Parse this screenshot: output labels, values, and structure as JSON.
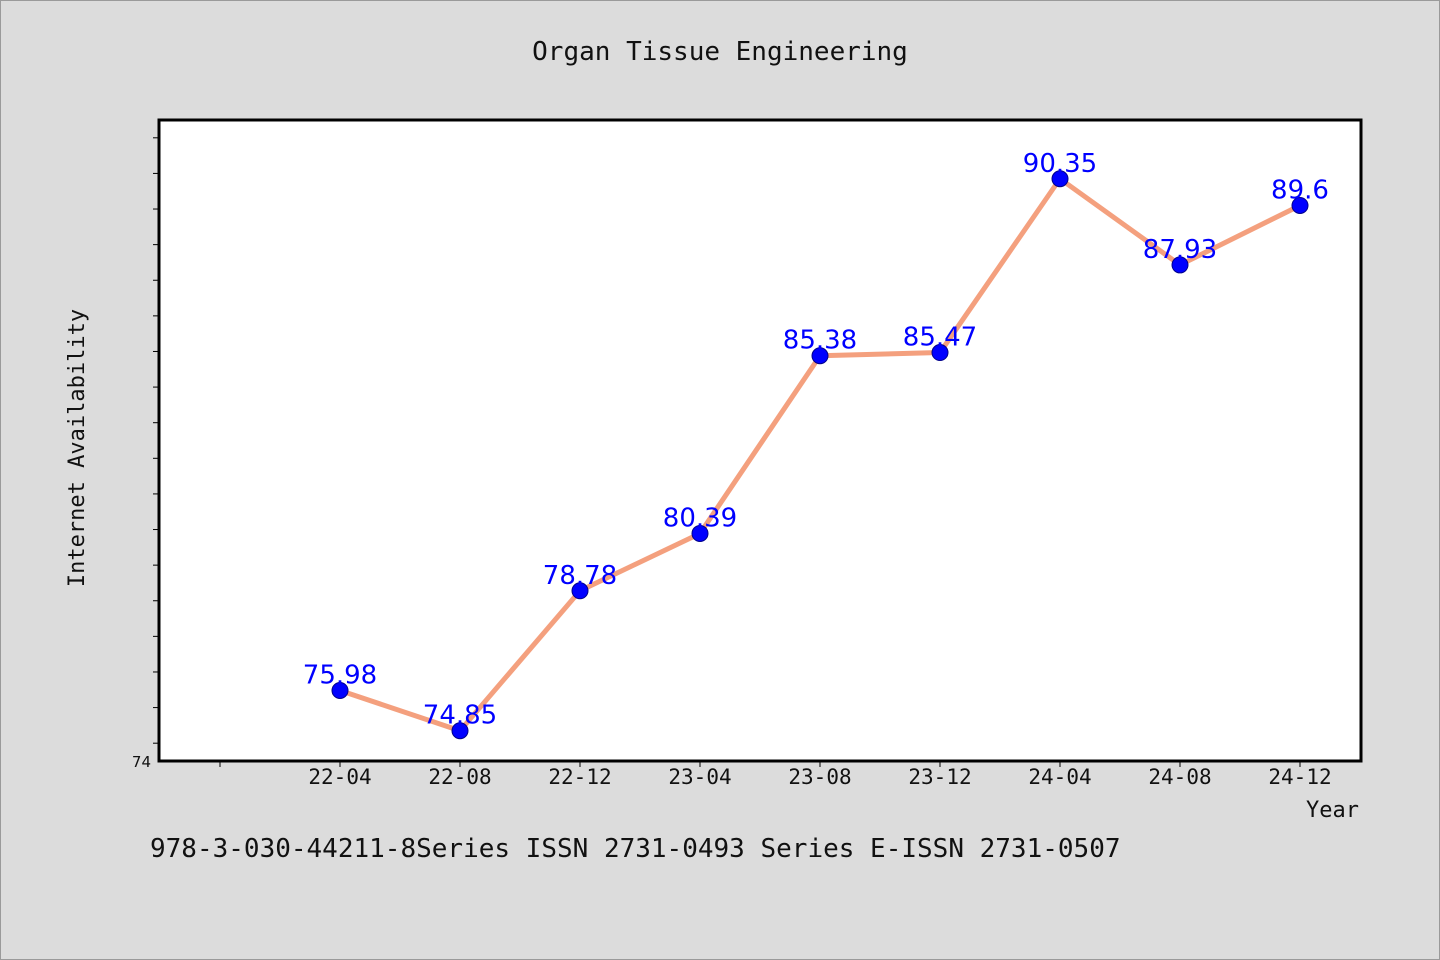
{
  "chart_data": {
    "type": "line",
    "title": "Organ Tissue Engineering",
    "xlabel": "Year",
    "ylabel": "Internet Availability",
    "categories": [
      "22-04",
      "22-08",
      "22-12",
      "23-04",
      "23-08",
      "23-12",
      "24-04",
      "24-08",
      "24-12"
    ],
    "series": [
      {
        "values": [
          75.98,
          74.85,
          78.78,
          80.39,
          85.38,
          85.47,
          90.35,
          87.93,
          89.6
        ]
      }
    ],
    "data_labels": [
      "75.98",
      "74.85",
      "78.78",
      "80.39",
      "85.38",
      "85.47",
      "90.35",
      "87.93",
      "89.6"
    ],
    "ylim": [
      74,
      92
    ],
    "y_tick_labels": [
      "74"
    ],
    "grid": false,
    "legend": "none",
    "colors": {
      "line": "#f4a07e",
      "marker": "#0000ff",
      "label": "#0000ff",
      "plot_bg": "#ffffff",
      "page_bg": "#dcdcdc"
    }
  },
  "footer": {
    "text": "978-3-030-44211-8Series ISSN 2731-0493 Series E-ISSN 2731-0507"
  }
}
